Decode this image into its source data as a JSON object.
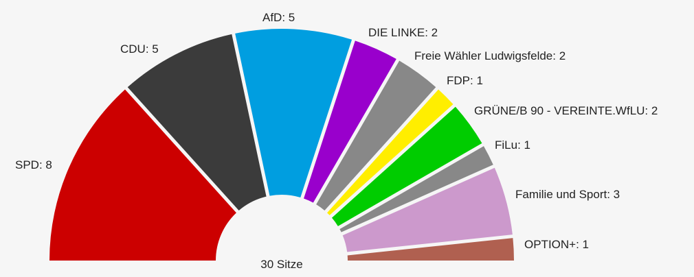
{
  "chart_data": {
    "type": "pie",
    "subtype": "semicircle-parliament",
    "total_label": "30 Sitze",
    "total": 30,
    "series": [
      {
        "name": "SPD",
        "value": 8,
        "label": "SPD: 8",
        "color": "#cc0000"
      },
      {
        "name": "CDU",
        "value": 5,
        "label": "CDU: 5",
        "color": "#3b3b3b"
      },
      {
        "name": "AfD",
        "value": 5,
        "label": "AfD: 5",
        "color": "#009ee0"
      },
      {
        "name": "DIE LINKE",
        "value": 2,
        "label": "DIE LINKE: 2",
        "color": "#9900cc"
      },
      {
        "name": "Freie Wähler Ludwigsfelde",
        "value": 2,
        "label": "Freie Wähler Ludwigsfelde: 2",
        "color": "#888888"
      },
      {
        "name": "FDP",
        "value": 1,
        "label": "FDP: 1",
        "color": "#ffee00"
      },
      {
        "name": "GRÜNE/B 90 - VEREINTE.WfLU",
        "value": 2,
        "label": "GRÜNE/B 90 - VEREINTE.WfLU: 2",
        "color": "#00cc00"
      },
      {
        "name": "FiLu",
        "value": 1,
        "label": "FiLu: 1",
        "color": "#888888"
      },
      {
        "name": "Familie und Sport",
        "value": 3,
        "label": "Familie und Sport: 3",
        "color": "#cc99cc"
      },
      {
        "name": "OPTION+",
        "value": 1,
        "label": "OPTION+: 1",
        "color": "#b06050"
      }
    ]
  }
}
